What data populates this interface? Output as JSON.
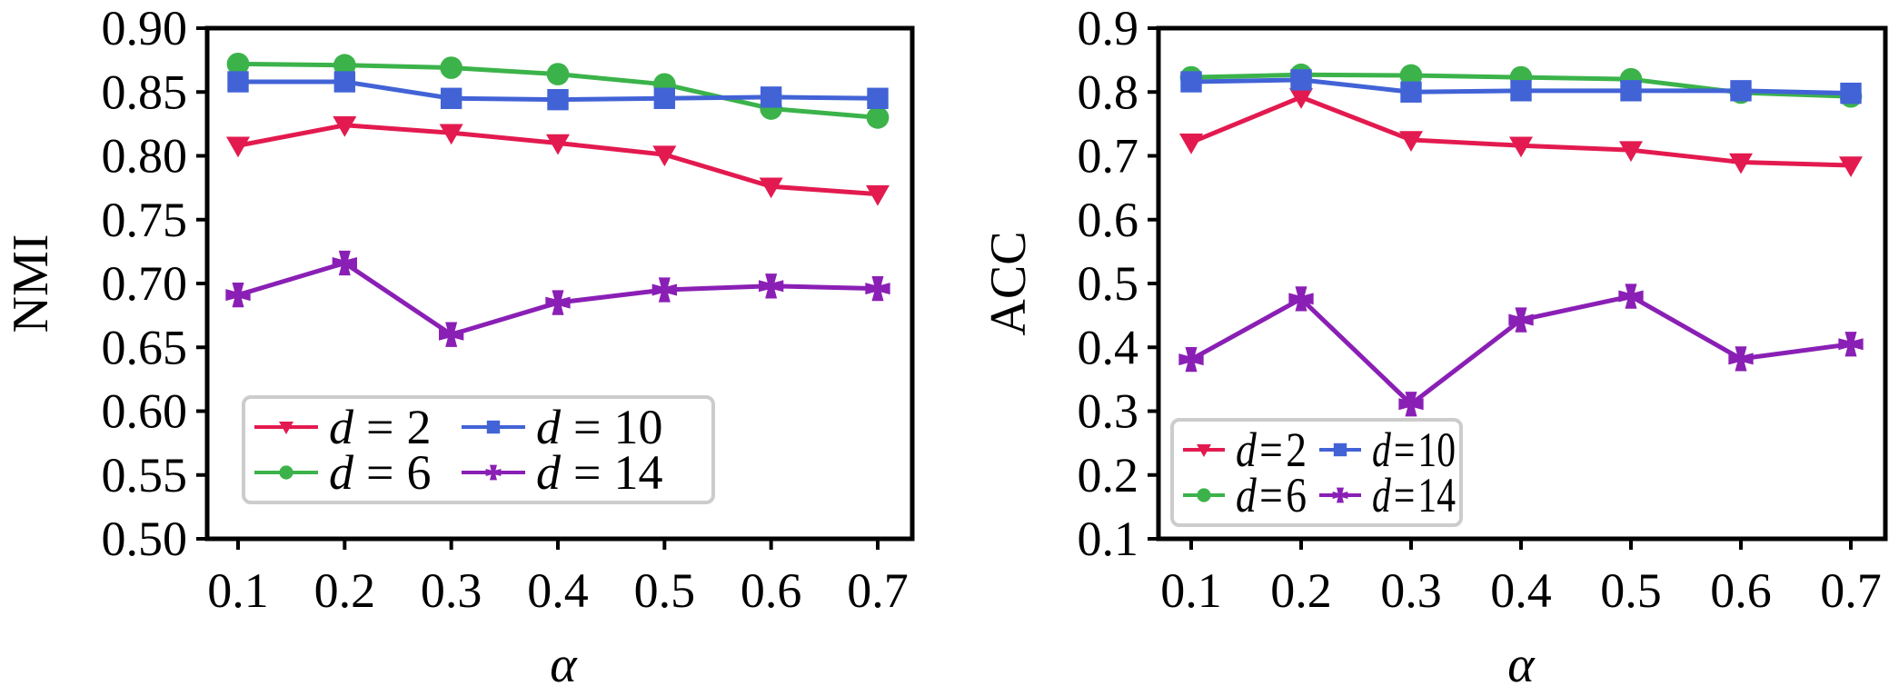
{
  "chart_data": [
    {
      "type": "line",
      "title": "",
      "xlabel": "α",
      "ylabel": "NMI",
      "x": [
        0.1,
        0.2,
        0.3,
        0.4,
        0.5,
        0.6,
        0.7
      ],
      "x_tick_labels": [
        "0.1",
        "0.2",
        "0.3",
        "0.4",
        "0.5",
        "0.6",
        "0.7"
      ],
      "ylim": [
        0.5,
        0.9
      ],
      "y_ticks": [
        0.5,
        0.55,
        0.6,
        0.65,
        0.7,
        0.75,
        0.8,
        0.85,
        0.9
      ],
      "y_tick_labels": [
        "0.50",
        "0.55",
        "0.60",
        "0.65",
        "0.70",
        "0.75",
        "0.80",
        "0.85",
        "0.90"
      ],
      "grid": false,
      "legend_position": "bottom-left",
      "series": [
        {
          "name": "d = 2",
          "var": "d",
          "eq": "=",
          "num": "2",
          "color": "#e31a4f",
          "marker": "triangle-down",
          "values": [
            0.808,
            0.824,
            0.818,
            0.81,
            0.801,
            0.776,
            0.77
          ]
        },
        {
          "name": "d = 6",
          "var": "d",
          "eq": "=",
          "num": "6",
          "color": "#3bb34a",
          "marker": "circle",
          "values": [
            0.872,
            0.871,
            0.869,
            0.864,
            0.856,
            0.837,
            0.83
          ]
        },
        {
          "name": "d = 10",
          "var": "d",
          "eq": "=",
          "num": "10",
          "color": "#4263d6",
          "marker": "square",
          "values": [
            0.858,
            0.858,
            0.845,
            0.844,
            0.845,
            0.846,
            0.845
          ]
        },
        {
          "name": "d = 14",
          "var": "d",
          "eq": "=",
          "num": "14",
          "color": "#8a1fb5",
          "marker": "plus-filled",
          "values": [
            0.691,
            0.716,
            0.66,
            0.685,
            0.695,
            0.698,
            0.696
          ]
        }
      ]
    },
    {
      "type": "line",
      "title": "",
      "xlabel": "α",
      "ylabel": "ACC",
      "x": [
        0.1,
        0.2,
        0.3,
        0.4,
        0.5,
        0.6,
        0.7
      ],
      "x_tick_labels": [
        "0.1",
        "0.2",
        "0.3",
        "0.4",
        "0.5",
        "0.6",
        "0.7"
      ],
      "ylim": [
        0.1,
        0.9
      ],
      "y_ticks": [
        0.1,
        0.2,
        0.3,
        0.4,
        0.5,
        0.6,
        0.7,
        0.8,
        0.9
      ],
      "y_tick_labels": [
        "0.1",
        "0.2",
        "0.3",
        "0.4",
        "0.5",
        "0.6",
        "0.7",
        "0.8",
        "0.9"
      ],
      "grid": false,
      "legend_position": "bottom-left",
      "series": [
        {
          "name": "d = 2",
          "var": "d",
          "eq": "=",
          "num": "2",
          "color": "#e31a4f",
          "marker": "triangle-down",
          "values": [
            0.721,
            0.792,
            0.725,
            0.716,
            0.709,
            0.69,
            0.685
          ]
        },
        {
          "name": "d = 6",
          "var": "d",
          "eq": "=",
          "num": "6",
          "color": "#3bb34a",
          "marker": "circle",
          "values": [
            0.823,
            0.827,
            0.826,
            0.823,
            0.82,
            0.799,
            0.793
          ]
        },
        {
          "name": "d = 10",
          "var": "d",
          "eq": "=",
          "num": "10",
          "color": "#4263d6",
          "marker": "square",
          "values": [
            0.816,
            0.819,
            0.8,
            0.802,
            0.802,
            0.802,
            0.798
          ]
        },
        {
          "name": "d = 14",
          "var": "d",
          "eq": "=",
          "num": "14",
          "color": "#8a1fb5",
          "marker": "plus-filled",
          "values": [
            0.381,
            0.476,
            0.311,
            0.443,
            0.48,
            0.382,
            0.405
          ]
        }
      ]
    }
  ]
}
